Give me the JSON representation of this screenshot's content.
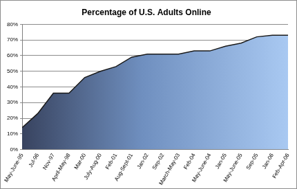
{
  "chart_data": {
    "type": "area",
    "title": "Percentage of U.S. Adults Online",
    "categories": [
      "May-June-95",
      "Jul-96",
      "Nov-97",
      "April-May-98",
      "Mar-00",
      "July-Aug-00",
      "Feb-01",
      "Aug-Sept-01",
      "Jan-02",
      "Sep-02",
      "March-May-03",
      "Feb-04",
      "May-June-04",
      "Jan-05",
      "May-June-05",
      "Sep-05",
      "Jan-06",
      "Feb-Apr-06"
    ],
    "values": [
      14,
      23,
      36,
      36,
      46,
      50,
      53,
      59,
      61,
      61,
      61,
      63,
      63,
      66,
      68,
      72,
      73,
      73
    ],
    "color": "#a9c9f2",
    "ylim": [
      0,
      80
    ],
    "yticks": [
      {
        "value": 0,
        "label": "0%"
      },
      {
        "value": 10,
        "label": "10%"
      },
      {
        "value": 20,
        "label": "20%"
      },
      {
        "value": 30,
        "label": "30%"
      },
      {
        "value": 40,
        "label": "40%"
      },
      {
        "value": 50,
        "label": "50%"
      },
      {
        "value": 60,
        "label": "60%"
      },
      {
        "value": 70,
        "label": "70%"
      },
      {
        "value": 80,
        "label": "80%"
      }
    ],
    "grid": true
  }
}
